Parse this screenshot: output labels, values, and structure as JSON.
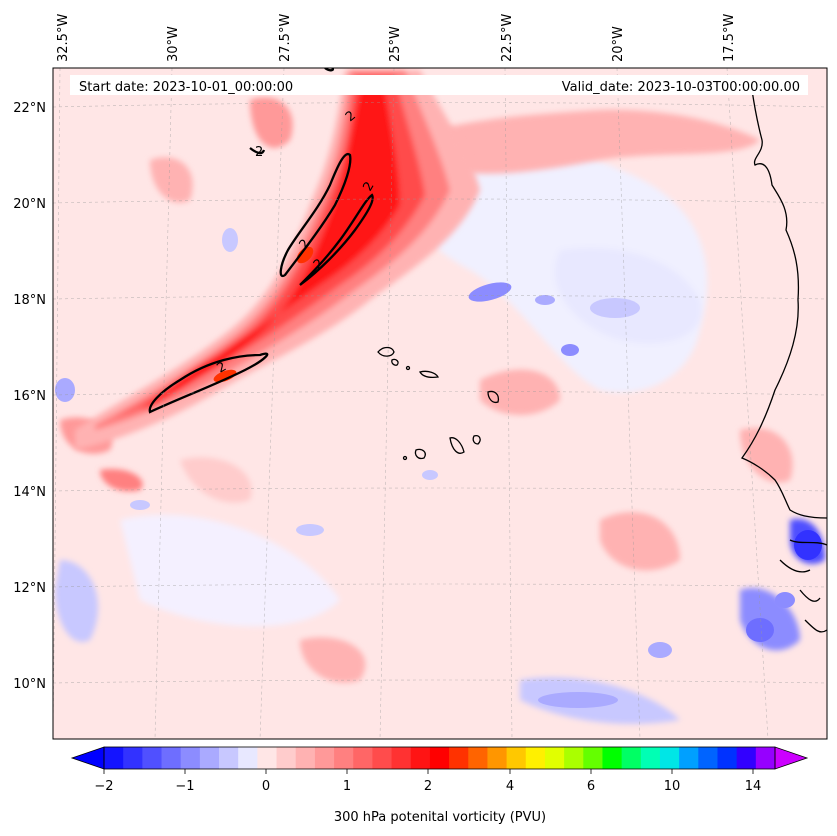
{
  "map": {
    "header": {
      "start_date": "Start date: 2023-10-01_00:00:00",
      "valid_date": "Valid_date: 2023-10-03T00:00:00.00"
    },
    "lon_labels": [
      "32.5°W",
      "30°W",
      "27.5°W",
      "25°W",
      "22.5°W",
      "20°W",
      "17.5°W"
    ],
    "lat_labels": [
      "22°N",
      "20°N",
      "18°N",
      "16°N",
      "14°N",
      "12°N",
      "10°N"
    ],
    "contour_label": "2",
    "field": "300 hPa potential vorticity",
    "units": "PVU"
  },
  "colorbar": {
    "tick_labels": [
      "−2",
      "−1",
      "0",
      "1",
      "2",
      "4",
      "6",
      "10",
      "14"
    ],
    "label": "300 hPa potenital vorticity (PVU)",
    "colors": [
      "#1414ff",
      "#3232ff",
      "#5050ff",
      "#6e6eff",
      "#8c8cff",
      "#aaaaff",
      "#c8c8ff",
      "#e8e8ff",
      "#ffe6e6",
      "#ffcccc",
      "#ffb2b2",
      "#ff9999",
      "#ff8080",
      "#ff6666",
      "#ff4c4c",
      "#ff3232",
      "#ff1414",
      "#ff0000",
      "#ff3200",
      "#ff6400",
      "#ff9600",
      "#ffc800",
      "#fff000",
      "#e1ff00",
      "#aaff00",
      "#64ff00",
      "#00ff00",
      "#00ff64",
      "#00ffb4",
      "#00e6e6",
      "#00a0ff",
      "#0064ff",
      "#0032ff",
      "#3200ff",
      "#9600ff"
    ],
    "under_color": "#0000ff",
    "over_color": "#cc00ff"
  }
}
